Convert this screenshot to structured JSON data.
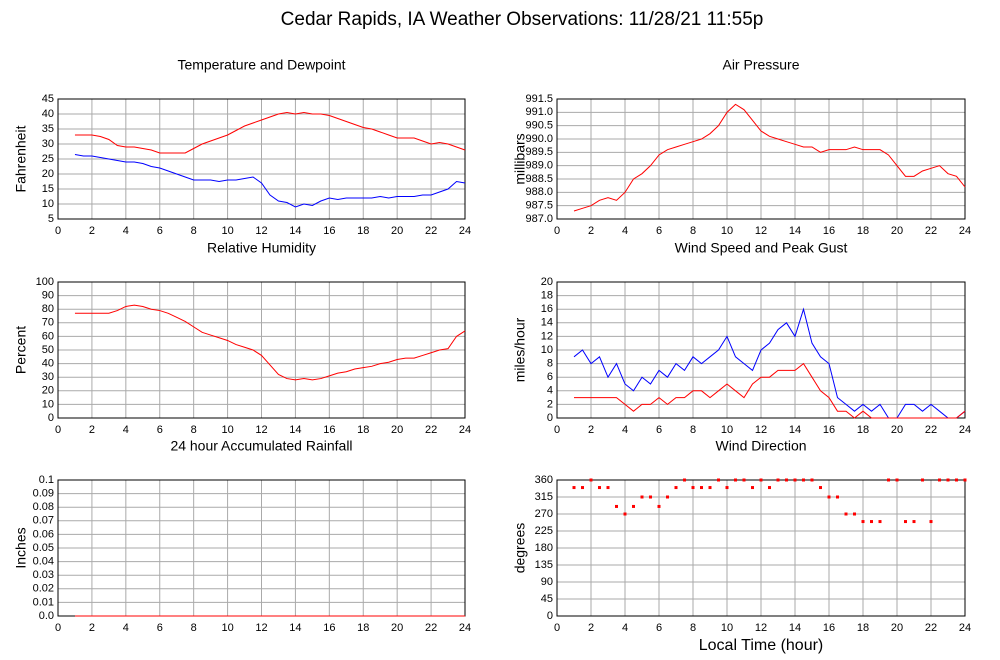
{
  "title": "Cedar Rapids, IA Weather Observations: 11/28/21 11:55p",
  "chart_data": [
    {
      "type": "line",
      "title": "Temperature and Dewpoint",
      "ylabel": "Fahrenheit",
      "x": [
        1,
        1.5,
        2,
        2.5,
        3,
        3.5,
        4,
        4.5,
        5,
        5.5,
        6,
        6.5,
        7,
        7.5,
        8,
        8.5,
        9,
        9.5,
        10,
        10.5,
        11,
        11.5,
        12,
        12.5,
        13,
        13.5,
        14,
        14.5,
        15,
        15.5,
        16,
        16.5,
        17,
        17.5,
        18,
        18.5,
        19,
        19.5,
        20,
        20.5,
        21,
        21.5,
        22,
        22.5,
        23,
        23.5,
        24
      ],
      "series": [
        {
          "color": "#ff0000",
          "values": [
            33,
            33,
            33,
            32.5,
            31.5,
            29.5,
            29,
            29,
            28.5,
            28,
            27,
            27,
            27,
            27,
            28.5,
            30,
            31,
            32,
            33,
            34.5,
            36,
            37,
            38,
            39,
            40,
            40.5,
            40,
            40.5,
            40,
            40,
            39.5,
            38.5,
            37.5,
            36.5,
            35.5,
            35,
            34,
            33,
            32,
            32,
            32,
            31,
            30,
            30.5,
            30,
            29,
            28
          ]
        },
        {
          "color": "#0000ff",
          "values": [
            26.5,
            26,
            26,
            25.5,
            25,
            24.5,
            24,
            24,
            23.5,
            22.5,
            22,
            21,
            20,
            19,
            18,
            18,
            18,
            17.5,
            18,
            18,
            18.5,
            19,
            17,
            13,
            11,
            10.5,
            9,
            10,
            9.5,
            11,
            12,
            11.5,
            12,
            12,
            12,
            12,
            12.5,
            12,
            12.5,
            12.5,
            12.5,
            13,
            13,
            14,
            15,
            17.5,
            17
          ]
        }
      ],
      "xlim": [
        0,
        24
      ],
      "xticks": [
        0,
        2,
        4,
        6,
        8,
        10,
        12,
        14,
        16,
        18,
        20,
        22,
        24
      ],
      "ylim": [
        5,
        45
      ],
      "yticks": [
        5,
        10,
        15,
        20,
        25,
        30,
        35,
        40,
        45
      ],
      "grid": true
    },
    {
      "type": "line",
      "title": "Air Pressure",
      "ylabel": "millibars",
      "x": [
        1,
        1.5,
        2,
        2.5,
        3,
        3.5,
        4,
        4.5,
        5,
        5.5,
        6,
        6.5,
        7,
        7.5,
        8,
        8.5,
        9,
        9.5,
        10,
        10.5,
        11,
        11.5,
        12,
        12.5,
        13,
        13.5,
        14,
        14.5,
        15,
        15.5,
        16,
        16.5,
        17,
        17.5,
        18,
        18.5,
        19,
        19.5,
        20,
        20.5,
        21,
        21.5,
        22,
        22.5,
        23,
        23.5,
        24
      ],
      "series": [
        {
          "color": "#ff0000",
          "values": [
            987.3,
            987.4,
            987.5,
            987.7,
            987.8,
            987.7,
            988.0,
            988.5,
            988.7,
            989.0,
            989.4,
            989.6,
            989.7,
            989.8,
            989.9,
            990.0,
            990.2,
            990.5,
            991.0,
            991.3,
            991.1,
            990.7,
            990.3,
            990.1,
            990.0,
            989.9,
            989.8,
            989.7,
            989.7,
            989.5,
            989.6,
            989.6,
            989.6,
            989.7,
            989.6,
            989.6,
            989.6,
            989.4,
            989.0,
            988.6,
            988.6,
            988.8,
            988.9,
            989.0,
            988.7,
            988.6,
            988.2
          ]
        }
      ],
      "xlim": [
        0,
        24
      ],
      "xticks": [
        0,
        2,
        4,
        6,
        8,
        10,
        12,
        14,
        16,
        18,
        20,
        22,
        24
      ],
      "ylim": [
        987,
        991.5
      ],
      "yticks": [
        {
          "value": 987,
          "label": "987.0"
        },
        987.5,
        {
          "value": 988,
          "label": "988.0"
        },
        988.5,
        {
          "value": 989,
          "label": "989.0"
        },
        989.5,
        {
          "value": 990,
          "label": "990.0"
        },
        990.5,
        {
          "value": 991,
          "label": "991.0"
        },
        991.5
      ],
      "grid": true
    },
    {
      "type": "line",
      "title": "Relative Humidity",
      "ylabel": "Percent",
      "x": [
        1,
        1.5,
        2,
        2.5,
        3,
        3.5,
        4,
        4.5,
        5,
        5.5,
        6,
        6.5,
        7,
        7.5,
        8,
        8.5,
        9,
        9.5,
        10,
        10.5,
        11,
        11.5,
        12,
        12.5,
        13,
        13.5,
        14,
        14.5,
        15,
        15.5,
        16,
        16.5,
        17,
        17.5,
        18,
        18.5,
        19,
        19.5,
        20,
        20.5,
        21,
        21.5,
        22,
        22.5,
        23,
        23.5,
        24
      ],
      "series": [
        {
          "color": "#ff0000",
          "values": [
            77,
            77,
            77,
            77,
            77,
            79,
            82,
            83,
            82,
            80,
            79,
            77,
            74,
            71,
            67,
            63,
            61,
            59,
            57,
            54,
            52,
            50,
            46,
            39,
            32,
            29,
            28,
            29,
            28,
            29,
            31,
            33,
            34,
            36,
            37,
            38,
            40,
            41,
            43,
            44,
            44,
            46,
            48,
            50,
            51,
            60,
            64
          ]
        }
      ],
      "xlim": [
        0,
        24
      ],
      "xticks": [
        0,
        2,
        4,
        6,
        8,
        10,
        12,
        14,
        16,
        18,
        20,
        22,
        24
      ],
      "ylim": [
        0,
        100
      ],
      "yticks": [
        0,
        10,
        20,
        30,
        40,
        50,
        60,
        70,
        80,
        90,
        100
      ],
      "grid": true
    },
    {
      "type": "line",
      "title": "Wind Speed and Peak Gust",
      "ylabel": "miles/hour",
      "x": [
        1,
        1.5,
        2,
        2.5,
        3,
        3.5,
        4,
        4.5,
        5,
        5.5,
        6,
        6.5,
        7,
        7.5,
        8,
        8.5,
        9,
        9.5,
        10,
        10.5,
        11,
        11.5,
        12,
        12.5,
        13,
        13.5,
        14,
        14.5,
        15,
        15.5,
        16,
        16.5,
        17,
        17.5,
        18,
        18.5,
        19,
        19.5,
        20,
        20.5,
        21,
        21.5,
        22,
        22.5,
        23,
        23.5,
        24
      ],
      "series": [
        {
          "color": "#0000ff",
          "values": [
            9,
            10,
            8,
            9,
            6,
            8,
            5,
            4,
            6,
            5,
            7,
            6,
            8,
            7,
            9,
            8,
            9,
            10,
            12,
            9,
            8,
            7,
            10,
            11,
            13,
            14,
            12,
            16,
            11,
            9,
            8,
            3,
            2,
            1,
            2,
            1,
            2,
            0,
            0,
            2,
            2,
            1,
            2,
            1,
            0,
            0,
            1
          ]
        },
        {
          "color": "#ff0000",
          "values": [
            3,
            3,
            3,
            3,
            3,
            3,
            2,
            1,
            2,
            2,
            3,
            2,
            3,
            3,
            4,
            4,
            3,
            4,
            5,
            4,
            3,
            5,
            6,
            6,
            7,
            7,
            7,
            8,
            6,
            4,
            3,
            1,
            1,
            0,
            1,
            0,
            0,
            0,
            0,
            0,
            0,
            0,
            0,
            0,
            0,
            0,
            1
          ]
        }
      ],
      "xlim": [
        0,
        24
      ],
      "xticks": [
        0,
        2,
        4,
        6,
        8,
        10,
        12,
        14,
        16,
        18,
        20,
        22,
        24
      ],
      "ylim": [
        0,
        20
      ],
      "yticks": [
        0,
        2,
        4,
        6,
        8,
        10,
        12,
        14,
        16,
        18,
        20
      ],
      "grid": true
    },
    {
      "type": "line",
      "title": "24 hour Accumulated Rainfall",
      "ylabel": "Inches",
      "x": [
        1,
        24
      ],
      "series": [
        {
          "color": "#ff0000",
          "values": [
            0,
            0
          ]
        }
      ],
      "xlim": [
        0,
        24
      ],
      "xticks": [
        0,
        2,
        4,
        6,
        8,
        10,
        12,
        14,
        16,
        18,
        20,
        22,
        24
      ],
      "ylim": [
        0,
        0.1
      ],
      "yticks": [
        {
          "value": 0,
          "label": "0.0"
        },
        0.01,
        0.02,
        0.03,
        0.04,
        0.05,
        0.06,
        0.07,
        0.08,
        0.09,
        0.1
      ],
      "grid": true
    },
    {
      "type": "scatter",
      "title": "Wind Direction",
      "ylabel": "degrees",
      "xlabel": "Local Time (hour)",
      "x": [
        1,
        1.5,
        2,
        2.5,
        3,
        3.5,
        4,
        4.5,
        5,
        5.5,
        6,
        6.5,
        7,
        7.5,
        8,
        8.5,
        9,
        9.5,
        10,
        10.5,
        11,
        11.5,
        12,
        12.5,
        13,
        13.5,
        14,
        14.5,
        15,
        15.5,
        16,
        16.5,
        17,
        17.5,
        18,
        18.5,
        19,
        19.5,
        20,
        20.5,
        21,
        21.5,
        22,
        22.5,
        23,
        23.5,
        24
      ],
      "series": [
        {
          "color": "#ff0000",
          "values": [
            340,
            340,
            360,
            340,
            340,
            290,
            270,
            290,
            315,
            315,
            290,
            315,
            340,
            360,
            340,
            340,
            340,
            360,
            340,
            360,
            360,
            340,
            360,
            340,
            360,
            360,
            360,
            360,
            360,
            340,
            315,
            315,
            270,
            270,
            250,
            250,
            250,
            360,
            360,
            250,
            250,
            360,
            250,
            360,
            360,
            360,
            360
          ]
        }
      ],
      "xlim": [
        0,
        24
      ],
      "xticks": [
        0,
        2,
        4,
        6,
        8,
        10,
        12,
        14,
        16,
        18,
        20,
        22,
        24
      ],
      "ylim": [
        0,
        360
      ],
      "yticks": [
        0,
        45,
        90,
        135,
        180,
        225,
        270,
        315,
        360
      ],
      "grid": true
    }
  ]
}
